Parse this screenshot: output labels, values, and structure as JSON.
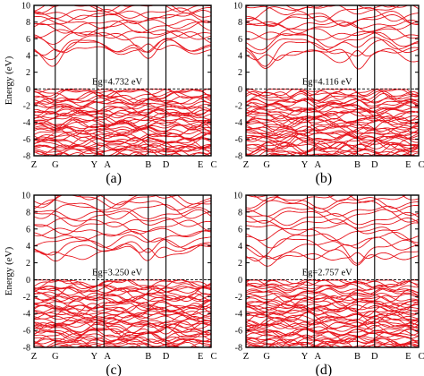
{
  "figure": {
    "band_color": "#e8171f",
    "frame_color": "#000000",
    "fermi_line_color": "#000000"
  },
  "chart_data": [
    {
      "type": "line",
      "panel_label": "(a)",
      "ylabel": "Energy (eV)",
      "ylim": [
        -8,
        10
      ],
      "yticks": [
        -8,
        -6,
        -4,
        -2,
        0,
        2,
        4,
        6,
        8,
        10
      ],
      "kpoints": [
        {
          "label": "Z",
          "pos": 0.0
        },
        {
          "label": "G",
          "pos": 0.12
        },
        {
          "label": "Y",
          "pos": 0.355
        },
        {
          "label": "A",
          "pos": 0.395
        },
        {
          "label": "B",
          "pos": 0.645
        },
        {
          "label": "D",
          "pos": 0.745
        },
        {
          "label": "E",
          "pos": 0.955
        },
        {
          "label": "C",
          "pos": 1.0
        }
      ],
      "annotation": "Eg=4.732 eV",
      "band_gap_eV": 4.732,
      "fermi_level": 0,
      "conduction_band_min": [
        {
          "k": 0.12,
          "E": 4.7
        },
        {
          "k": 0.645,
          "E": 5.4
        }
      ],
      "conduction_band_range": [
        4.7,
        10
      ],
      "valence_band_range": [
        -8,
        0
      ],
      "grid": false
    },
    {
      "type": "line",
      "panel_label": "(b)",
      "ylim": [
        -8,
        10
      ],
      "yticks": [
        -8,
        -6,
        -4,
        -2,
        0,
        2,
        4,
        6,
        8,
        10
      ],
      "kpoints": [
        {
          "label": "Z",
          "pos": 0.0
        },
        {
          "label": "G",
          "pos": 0.12
        },
        {
          "label": "Y",
          "pos": 0.355
        },
        {
          "label": "A",
          "pos": 0.395
        },
        {
          "label": "B",
          "pos": 0.645
        },
        {
          "label": "D",
          "pos": 0.745
        },
        {
          "label": "E",
          "pos": 0.955
        },
        {
          "label": "C",
          "pos": 1.0
        }
      ],
      "annotation": "Eg=4.116 eV",
      "band_gap_eV": 4.116,
      "fermi_level": 0,
      "conduction_band_min": [
        {
          "k": 0.12,
          "E": 4.1
        },
        {
          "k": 0.645,
          "E": 4.6
        }
      ],
      "conduction_band_range": [
        4.1,
        10
      ],
      "valence_band_range": [
        -8,
        0
      ],
      "grid": false
    },
    {
      "type": "line",
      "panel_label": "(c)",
      "ylabel": "Energy (eV)",
      "ylim": [
        -8,
        10
      ],
      "yticks": [
        -8,
        -6,
        -4,
        -2,
        0,
        2,
        4,
        6,
        8,
        10
      ],
      "kpoints": [
        {
          "label": "Z",
          "pos": 0.0
        },
        {
          "label": "G",
          "pos": 0.12
        },
        {
          "label": "Y",
          "pos": 0.355
        },
        {
          "label": "A",
          "pos": 0.395
        },
        {
          "label": "B",
          "pos": 0.645
        },
        {
          "label": "D",
          "pos": 0.745
        },
        {
          "label": "E",
          "pos": 0.955
        },
        {
          "label": "C",
          "pos": 1.0
        }
      ],
      "annotation": "Eg=3.250 eV",
      "band_gap_eV": 3.25,
      "fermi_level": 0,
      "conduction_band_min": [
        {
          "k": 0.12,
          "E": 3.3
        },
        {
          "k": 0.645,
          "E": 3.7
        }
      ],
      "conduction_band_range": [
        3.3,
        10
      ],
      "valence_band_range": [
        -8,
        0
      ],
      "grid": false
    },
    {
      "type": "line",
      "panel_label": "(d)",
      "ylim": [
        -8,
        10
      ],
      "yticks": [
        -8,
        -6,
        -4,
        -2,
        0,
        2,
        4,
        6,
        8,
        10
      ],
      "kpoints": [
        {
          "label": "Z",
          "pos": 0.0
        },
        {
          "label": "G",
          "pos": 0.12
        },
        {
          "label": "Y",
          "pos": 0.355
        },
        {
          "label": "A",
          "pos": 0.395
        },
        {
          "label": "B",
          "pos": 0.645
        },
        {
          "label": "D",
          "pos": 0.745
        },
        {
          "label": "E",
          "pos": 0.955
        },
        {
          "label": "C",
          "pos": 1.0
        }
      ],
      "annotation": "Eg=2.757 eV",
      "band_gap_eV": 2.757,
      "fermi_level": 0,
      "conduction_band_min": [
        {
          "k": 0.12,
          "E": 2.8
        },
        {
          "k": 0.645,
          "E": 3.2
        }
      ],
      "conduction_band_range": [
        2.8,
        10
      ],
      "valence_band_range": [
        -8,
        0
      ],
      "grid": false
    }
  ]
}
